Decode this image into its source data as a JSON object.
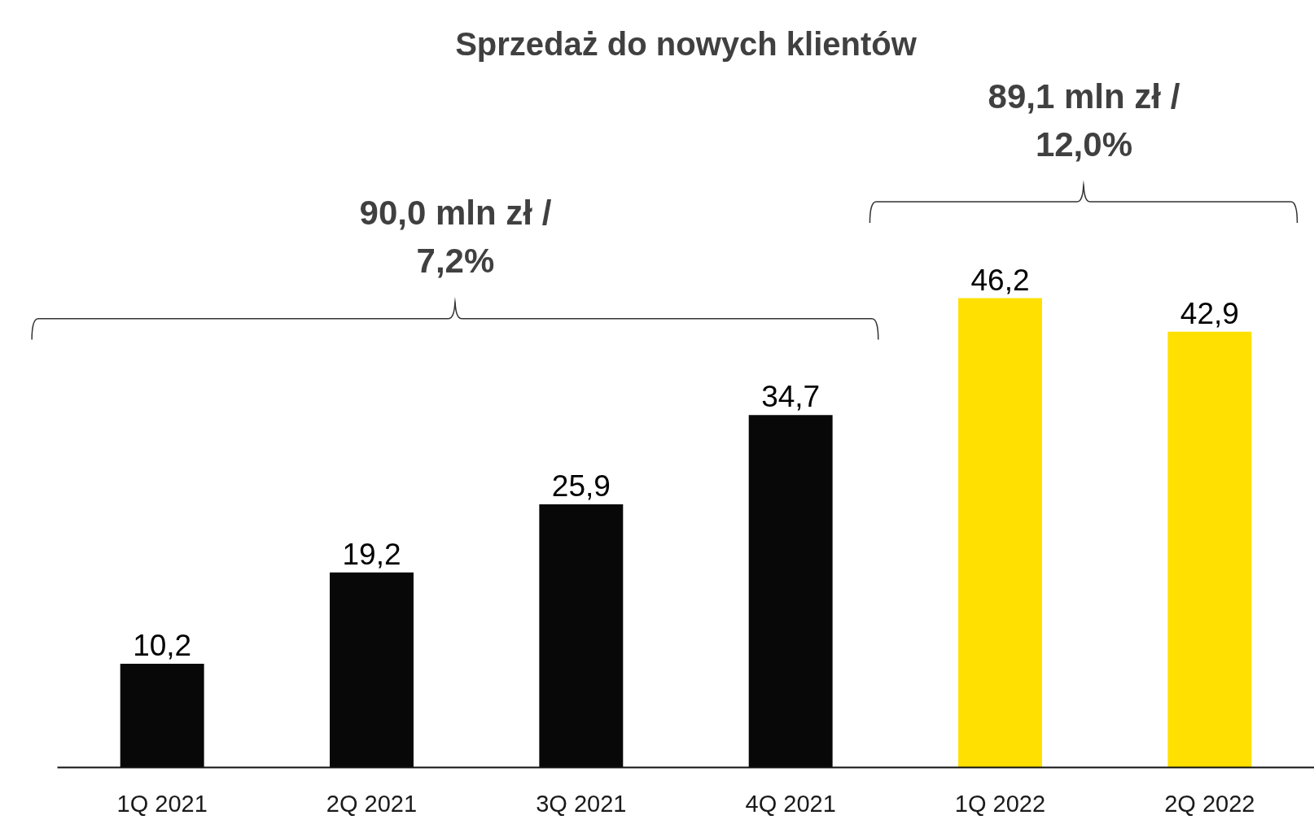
{
  "chart_data": {
    "type": "bar",
    "title": "Sprzedaż do nowych klientów",
    "categories": [
      "1Q 2021",
      "2Q 2021",
      "3Q 2021",
      "4Q 2021",
      "1Q 2022",
      "2Q 2022"
    ],
    "values": [
      10.2,
      19.2,
      25.9,
      34.7,
      46.2,
      42.9
    ],
    "colors": [
      "#080808",
      "#080808",
      "#080808",
      "#080808",
      "#ffe000",
      "#ffe000"
    ],
    "value_labels": [
      "10,2",
      "19,2",
      "25,9",
      "34,7",
      "46,2",
      "42,9"
    ],
    "annotations": [
      "90,0 mln zł /\n7,2%",
      "89,1 mln zł /\n12,0%"
    ],
    "tick_labels": "x"
  }
}
